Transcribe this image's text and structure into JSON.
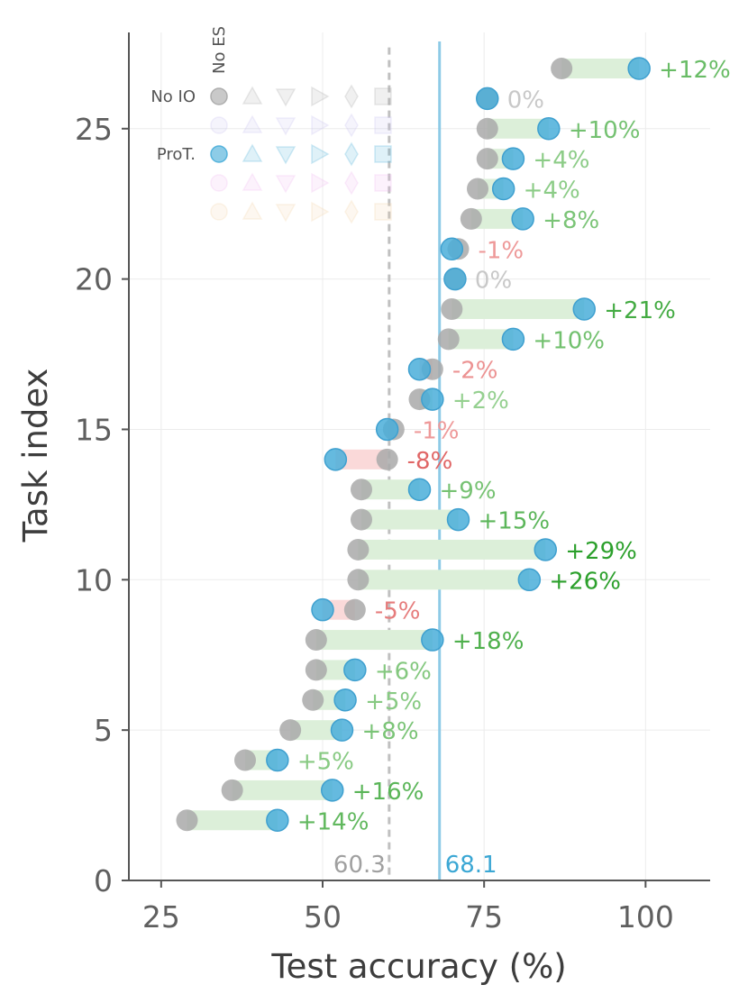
{
  "chart_data": {
    "type": "dumbbell",
    "xlabel": "Test accuracy (%)",
    "ylabel": "Task index",
    "xlim": [
      20,
      110
    ],
    "ylim": [
      0,
      28.2
    ],
    "xticks": [
      25,
      50,
      75,
      100
    ],
    "yticks": [
      0,
      5,
      10,
      15,
      20,
      25
    ],
    "grid": true,
    "colors": {
      "baseline": "#a9a9a9",
      "method": "#4aaed9",
      "positive_bar": "#dcefd9",
      "negative_bar": "#fad9d9",
      "positive_text_strong": "#2ca02c",
      "negative_text_strong": "#e06666",
      "zero_text": "#c8c8c8",
      "baseline_ref": "#c0c0c0",
      "method_ref": "#7fc4e6"
    },
    "reference_lines": [
      {
        "name": "No IO mean",
        "value": 60.3,
        "label": "60.3",
        "style": "dashed",
        "color": "#c0c0c0",
        "text_color": "#a0a0a0"
      },
      {
        "name": "ProT. mean",
        "value": 68.1,
        "label": "68.1",
        "style": "solid",
        "color": "#8ecae6",
        "text_color": "#3ba7d4"
      }
    ],
    "series": [
      {
        "name": "No IO",
        "role": "baseline"
      },
      {
        "name": "ProT.",
        "role": "method"
      }
    ],
    "tasks": [
      {
        "index": 2,
        "baseline": 29,
        "method": 43,
        "label": "+14%"
      },
      {
        "index": 3,
        "baseline": 36,
        "method": 51.5,
        "label": "+16%"
      },
      {
        "index": 4,
        "baseline": 38,
        "method": 43,
        "label": "+5%"
      },
      {
        "index": 5,
        "baseline": 45,
        "method": 53,
        "label": "+8%"
      },
      {
        "index": 6,
        "baseline": 48.5,
        "method": 53.5,
        "label": "+5%"
      },
      {
        "index": 7,
        "baseline": 49,
        "method": 55,
        "label": "+6%"
      },
      {
        "index": 8,
        "baseline": 49,
        "method": 67,
        "label": "+18%"
      },
      {
        "index": 9,
        "baseline": 55,
        "method": 50,
        "label": "-5%"
      },
      {
        "index": 10,
        "baseline": 55.5,
        "method": 82,
        "label": "+26%"
      },
      {
        "index": 11,
        "baseline": 55.5,
        "method": 84.5,
        "label": "+29%"
      },
      {
        "index": 12,
        "baseline": 56,
        "method": 71,
        "label": "+15%"
      },
      {
        "index": 13,
        "baseline": 56,
        "method": 65,
        "label": "+9%"
      },
      {
        "index": 14,
        "baseline": 60,
        "method": 52,
        "label": "-8%"
      },
      {
        "index": 15,
        "baseline": 61,
        "method": 60,
        "label": "-1%"
      },
      {
        "index": 16,
        "baseline": 65,
        "method": 67,
        "label": "+2%"
      },
      {
        "index": 17,
        "baseline": 67,
        "method": 65,
        "label": "-2%"
      },
      {
        "index": 18,
        "baseline": 69.5,
        "method": 79.5,
        "label": "+10%"
      },
      {
        "index": 19,
        "baseline": 70,
        "method": 90.5,
        "label": "+21%"
      },
      {
        "index": 20,
        "baseline": 70.5,
        "method": 70.5,
        "label": "0%"
      },
      {
        "index": 21,
        "baseline": 71,
        "method": 70,
        "label": "-1%"
      },
      {
        "index": 22,
        "baseline": 73,
        "method": 81,
        "label": "+8%"
      },
      {
        "index": 23,
        "baseline": 74,
        "method": 78,
        "label": "+4%"
      },
      {
        "index": 24,
        "baseline": 75.5,
        "method": 79.5,
        "label": "+4%"
      },
      {
        "index": 25,
        "baseline": 75.5,
        "method": 85,
        "label": "+10%"
      },
      {
        "index": 26,
        "baseline": 75.5,
        "method": 75.5,
        "label": "0%"
      },
      {
        "index": 27,
        "baseline": 87,
        "method": 99,
        "label": "+12%"
      }
    ],
    "legend": {
      "placement": "top-left",
      "column_header": "No ES",
      "row_labels": [
        "No IO",
        "",
        "ProT.",
        "",
        ""
      ],
      "marker_shapes": [
        "circle",
        "triangle-up",
        "triangle-down",
        "triangle-right",
        "diamond",
        "square"
      ],
      "row_colors": [
        "#a9a9a9",
        "#c9bff0",
        "#4aaed9",
        "#f0b6ee",
        "#f2d2a9"
      ]
    }
  }
}
